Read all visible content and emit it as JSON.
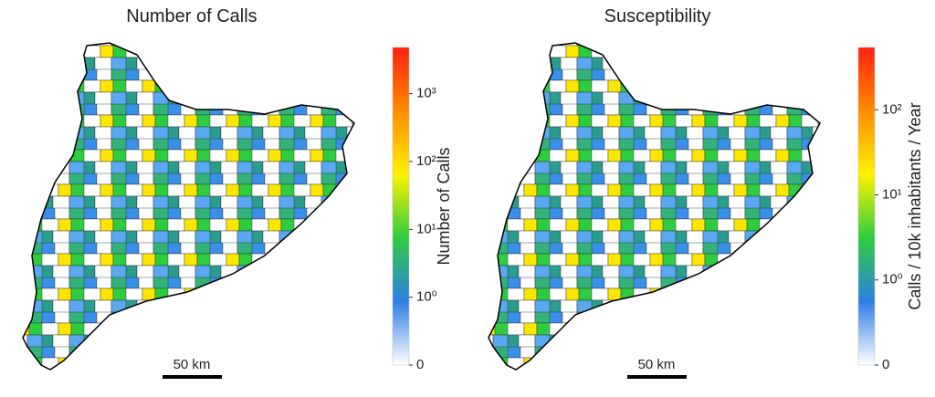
{
  "panels": [
    {
      "title": "Number of Calls",
      "colorbar": {
        "label": "Number of Calls",
        "scale": "symlog",
        "lim": [
          0,
          4800
        ],
        "ticks": [
          0,
          {
            "value": 1,
            "label": "10⁰"
          },
          {
            "value": 10,
            "label": "10¹"
          },
          {
            "value": 100,
            "label": "10²"
          },
          {
            "value": 1000,
            "label": "10³"
          }
        ]
      },
      "scalebar": "50 km"
    },
    {
      "title": "Susceptibility",
      "colorbar": {
        "label": "Calls / 10k inhabitants / Year",
        "scale": "symlog",
        "lim": [
          0,
          540
        ],
        "ticks": [
          0,
          {
            "value": 1,
            "label": "10⁰"
          },
          {
            "value": 10,
            "label": "10¹"
          },
          {
            "value": 100,
            "label": "10²"
          }
        ]
      },
      "scalebar": "50 km"
    }
  ],
  "colormap": [
    "#ffffff",
    "#2f7fe6",
    "#2ecc40",
    "#fff200",
    "#ff8c00",
    "#ff2010"
  ]
}
